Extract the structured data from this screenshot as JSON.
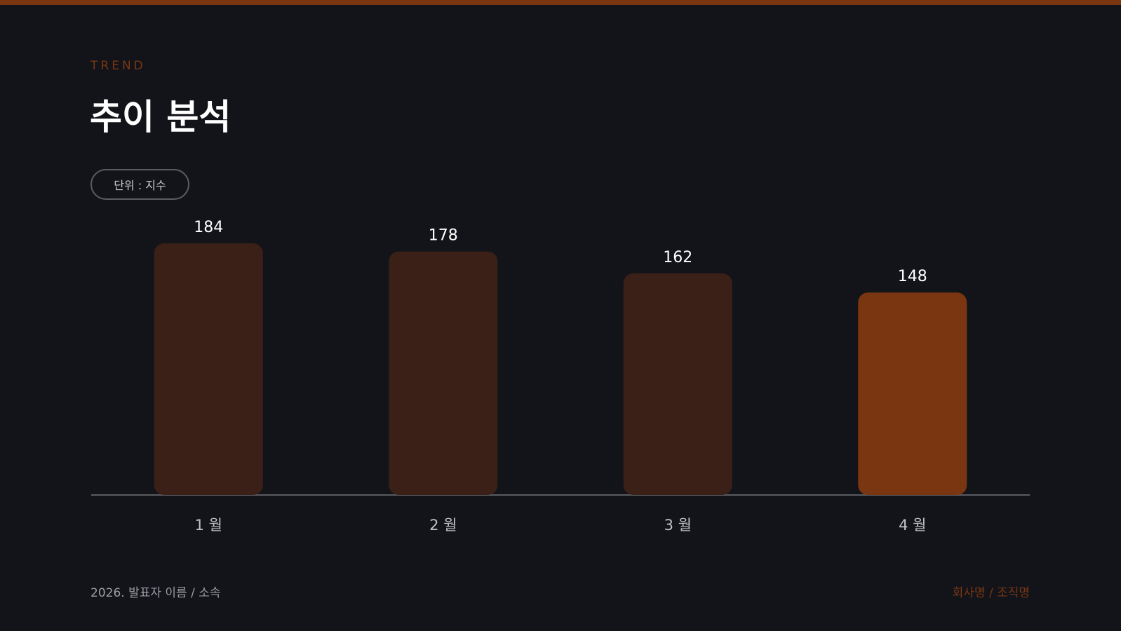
{
  "slide": {
    "eyebrow": "TREND",
    "title": "추이 분석",
    "unit_label": "단위 :  지수"
  },
  "footer": {
    "left": "2026.  발표자 이름  /  소속",
    "right": "회사명  /  조직명"
  },
  "colors": {
    "background": "#12141a",
    "accent": "#7a3611",
    "bar_default": "#3a2017",
    "bar_highlight": "#7a3611",
    "axis": "#5a5c61",
    "value_text": "#ffffff",
    "category_text": "#c0c1c4"
  },
  "chart_data": {
    "type": "bar",
    "categories": [
      "1 월",
      "2 월",
      "3 월",
      "4 월"
    ],
    "values": [
      184,
      178,
      162,
      148
    ],
    "highlight_index": 3,
    "title": "",
    "xlabel": "",
    "ylabel": "",
    "ylim": [
      0,
      184
    ],
    "grid": false
  }
}
